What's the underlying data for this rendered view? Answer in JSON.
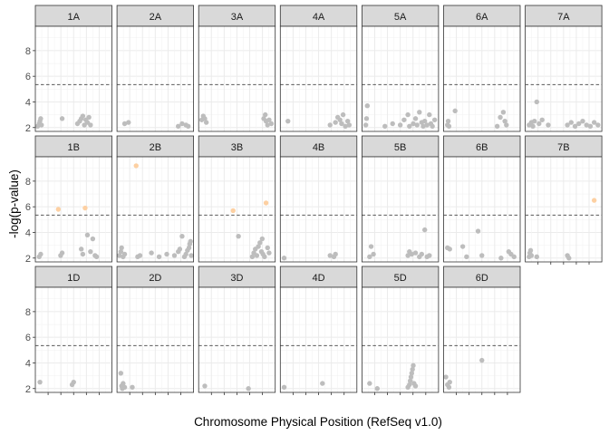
{
  "chart_data": {
    "type": "scatter",
    "facets": "wrap",
    "xlabel": "Chromosome Physical Position (RefSeq v1.0)",
    "ylabel": "-log(p-value)",
    "ylim": [
      1.7,
      9.9
    ],
    "yticks": [
      2,
      4,
      6,
      8
    ],
    "xlim": [
      0,
      1
    ],
    "threshold": 5.35,
    "grid": true,
    "colors": {
      "nonsignificant": "#bdbdbd",
      "significant": "#fdd0a2",
      "threshold_line": "#595959",
      "strip_fill": "#d9d9d9",
      "panel_border": "#333333",
      "grid_major": "#ebebeb"
    },
    "panels": [
      {
        "label": "1A",
        "points": [
          [
            0.03,
            2.1
          ],
          [
            0.05,
            2.3
          ],
          [
            0.06,
            2.5
          ],
          [
            0.07,
            2.7
          ],
          [
            0.08,
            2.2
          ],
          [
            0.35,
            2.7
          ],
          [
            0.55,
            2.3
          ],
          [
            0.58,
            2.5
          ],
          [
            0.6,
            2.7
          ],
          [
            0.62,
            2.9
          ],
          [
            0.64,
            2.2
          ],
          [
            0.66,
            2.6
          ],
          [
            0.68,
            2.4
          ],
          [
            0.7,
            2.8
          ],
          [
            0.72,
            2.2
          ]
        ]
      },
      {
        "label": "2A",
        "points": [
          [
            0.1,
            2.3
          ],
          [
            0.15,
            2.4
          ],
          [
            0.8,
            2.1
          ],
          [
            0.85,
            2.3
          ],
          [
            0.9,
            2.2
          ],
          [
            0.93,
            2.1
          ]
        ]
      },
      {
        "label": "3A",
        "points": [
          [
            0.04,
            2.6
          ],
          [
            0.06,
            2.9
          ],
          [
            0.08,
            2.7
          ],
          [
            0.1,
            2.4
          ],
          [
            0.85,
            2.7
          ],
          [
            0.87,
            3.0
          ],
          [
            0.88,
            2.5
          ],
          [
            0.9,
            2.2
          ],
          [
            0.92,
            2.6
          ],
          [
            0.95,
            2.3
          ]
        ]
      },
      {
        "label": "4A",
        "points": [
          [
            0.1,
            2.5
          ],
          [
            0.65,
            2.2
          ],
          [
            0.72,
            2.4
          ],
          [
            0.75,
            2.8
          ],
          [
            0.78,
            2.6
          ],
          [
            0.8,
            2.3
          ],
          [
            0.82,
            3.0
          ],
          [
            0.85,
            2.1
          ],
          [
            0.88,
            2.5
          ],
          [
            0.9,
            2.2
          ]
        ]
      },
      {
        "label": "5A",
        "points": [
          [
            0.05,
            2.2
          ],
          [
            0.06,
            2.7
          ],
          [
            0.07,
            3.7
          ],
          [
            0.3,
            2.1
          ],
          [
            0.4,
            2.3
          ],
          [
            0.5,
            2.2
          ],
          [
            0.55,
            2.6
          ],
          [
            0.6,
            3.0
          ],
          [
            0.62,
            2.1
          ],
          [
            0.67,
            2.3
          ],
          [
            0.7,
            2.7
          ],
          [
            0.72,
            2.2
          ],
          [
            0.75,
            3.2
          ],
          [
            0.78,
            2.4
          ],
          [
            0.8,
            2.1
          ],
          [
            0.82,
            2.5
          ],
          [
            0.85,
            2.2
          ],
          [
            0.88,
            3.0
          ],
          [
            0.9,
            2.3
          ],
          [
            0.92,
            2.1
          ],
          [
            0.95,
            2.6
          ]
        ]
      },
      {
        "label": "6A",
        "points": [
          [
            0.05,
            2.2
          ],
          [
            0.06,
            2.5
          ],
          [
            0.07,
            2.1
          ],
          [
            0.15,
            3.3
          ],
          [
            0.7,
            2.1
          ],
          [
            0.74,
            2.8
          ],
          [
            0.78,
            3.2
          ],
          [
            0.8,
            2.5
          ],
          [
            0.82,
            2.2
          ]
        ]
      },
      {
        "label": "7A",
        "points": [
          [
            0.05,
            2.2
          ],
          [
            0.08,
            2.4
          ],
          [
            0.1,
            2.1
          ],
          [
            0.12,
            2.5
          ],
          [
            0.15,
            4.0
          ],
          [
            0.18,
            2.3
          ],
          [
            0.22,
            2.6
          ],
          [
            0.3,
            2.2
          ],
          [
            0.55,
            2.2
          ],
          [
            0.6,
            2.4
          ],
          [
            0.65,
            2.1
          ],
          [
            0.7,
            2.3
          ],
          [
            0.75,
            2.5
          ],
          [
            0.8,
            2.2
          ],
          [
            0.85,
            2.1
          ],
          [
            0.9,
            2.4
          ],
          [
            0.95,
            2.2
          ]
        ]
      },
      {
        "label": "1B",
        "points": [
          [
            0.05,
            2.1
          ],
          [
            0.07,
            2.3
          ],
          [
            0.3,
            5.8
          ],
          [
            0.33,
            2.2
          ],
          [
            0.35,
            2.4
          ],
          [
            0.6,
            2.7
          ],
          [
            0.62,
            2.3
          ],
          [
            0.65,
            5.9
          ],
          [
            0.68,
            3.8
          ],
          [
            0.72,
            2.5
          ],
          [
            0.75,
            3.5
          ],
          [
            0.78,
            2.2
          ],
          [
            0.8,
            2.1
          ]
        ]
      },
      {
        "label": "2B",
        "points": [
          [
            0.03,
            2.2
          ],
          [
            0.05,
            2.5
          ],
          [
            0.06,
            2.8
          ],
          [
            0.08,
            2.1
          ],
          [
            0.1,
            2.3
          ],
          [
            0.25,
            9.2
          ],
          [
            0.27,
            2.1
          ],
          [
            0.3,
            2.2
          ],
          [
            0.45,
            2.4
          ],
          [
            0.55,
            2.1
          ],
          [
            0.65,
            2.3
          ],
          [
            0.75,
            2.2
          ],
          [
            0.8,
            2.5
          ],
          [
            0.82,
            2.7
          ],
          [
            0.85,
            3.7
          ],
          [
            0.88,
            2.1
          ],
          [
            0.9,
            2.3
          ],
          [
            0.92,
            2.6
          ],
          [
            0.94,
            2.8
          ],
          [
            0.95,
            3.1
          ],
          [
            0.96,
            3.3
          ],
          [
            0.97,
            2.2
          ]
        ]
      },
      {
        "label": "3B",
        "points": [
          [
            0.45,
            5.7
          ],
          [
            0.52,
            3.7
          ],
          [
            0.7,
            2.1
          ],
          [
            0.72,
            2.4
          ],
          [
            0.74,
            2.7
          ],
          [
            0.76,
            2.2
          ],
          [
            0.78,
            2.9
          ],
          [
            0.8,
            3.2
          ],
          [
            0.82,
            2.5
          ],
          [
            0.83,
            3.5
          ],
          [
            0.84,
            2.3
          ],
          [
            0.86,
            2.1
          ],
          [
            0.88,
            6.3
          ],
          [
            0.9,
            2.8
          ],
          [
            0.92,
            2.4
          ]
        ]
      },
      {
        "label": "4B",
        "points": [
          [
            0.05,
            2.0
          ],
          [
            0.65,
            2.2
          ],
          [
            0.7,
            2.1
          ],
          [
            0.72,
            2.3
          ]
        ]
      },
      {
        "label": "5B",
        "points": [
          [
            0.1,
            2.1
          ],
          [
            0.12,
            2.9
          ],
          [
            0.15,
            2.3
          ],
          [
            0.6,
            2.2
          ],
          [
            0.62,
            2.5
          ],
          [
            0.65,
            2.3
          ],
          [
            0.7,
            2.4
          ],
          [
            0.75,
            2.1
          ],
          [
            0.78,
            2.3
          ],
          [
            0.82,
            4.2
          ],
          [
            0.85,
            2.1
          ],
          [
            0.88,
            2.2
          ]
        ]
      },
      {
        "label": "6B",
        "points": [
          [
            0.05,
            2.8
          ],
          [
            0.08,
            2.7
          ],
          [
            0.25,
            2.9
          ],
          [
            0.3,
            2.1
          ],
          [
            0.45,
            4.1
          ],
          [
            0.5,
            2.2
          ],
          [
            0.75,
            2.0
          ],
          [
            0.85,
            2.5
          ],
          [
            0.88,
            2.3
          ],
          [
            0.92,
            2.1
          ]
        ]
      },
      {
        "label": "7B",
        "points": [
          [
            0.05,
            2.1
          ],
          [
            0.06,
            2.4
          ],
          [
            0.07,
            2.6
          ],
          [
            0.08,
            2.2
          ],
          [
            0.15,
            2.1
          ],
          [
            0.55,
            2.2
          ],
          [
            0.57,
            2.0
          ],
          [
            0.9,
            6.5
          ]
        ]
      },
      {
        "label": "1D",
        "points": [
          [
            0.06,
            2.5
          ],
          [
            0.48,
            2.3
          ],
          [
            0.5,
            2.5
          ]
        ]
      },
      {
        "label": "2D",
        "points": [
          [
            0.05,
            3.2
          ],
          [
            0.06,
            2.2
          ],
          [
            0.07,
            2.0
          ],
          [
            0.08,
            2.4
          ],
          [
            0.1,
            2.1
          ],
          [
            0.2,
            2.1
          ]
        ]
      },
      {
        "label": "3D",
        "points": [
          [
            0.08,
            2.2
          ],
          [
            0.65,
            2.0
          ]
        ]
      },
      {
        "label": "4D",
        "points": [
          [
            0.05,
            2.1
          ],
          [
            0.55,
            2.4
          ]
        ]
      },
      {
        "label": "5D",
        "points": [
          [
            0.1,
            2.4
          ],
          [
            0.2,
            2.0
          ],
          [
            0.6,
            2.1
          ],
          [
            0.62,
            2.3
          ],
          [
            0.63,
            2.6
          ],
          [
            0.64,
            2.9
          ],
          [
            0.65,
            3.2
          ],
          [
            0.66,
            3.5
          ],
          [
            0.67,
            3.8
          ],
          [
            0.68,
            2.4
          ],
          [
            0.7,
            2.2
          ]
        ]
      },
      {
        "label": "6D",
        "points": [
          [
            0.03,
            2.9
          ],
          [
            0.05,
            2.3
          ],
          [
            0.07,
            2.1
          ],
          [
            0.08,
            2.5
          ],
          [
            0.5,
            4.2
          ]
        ]
      }
    ]
  }
}
